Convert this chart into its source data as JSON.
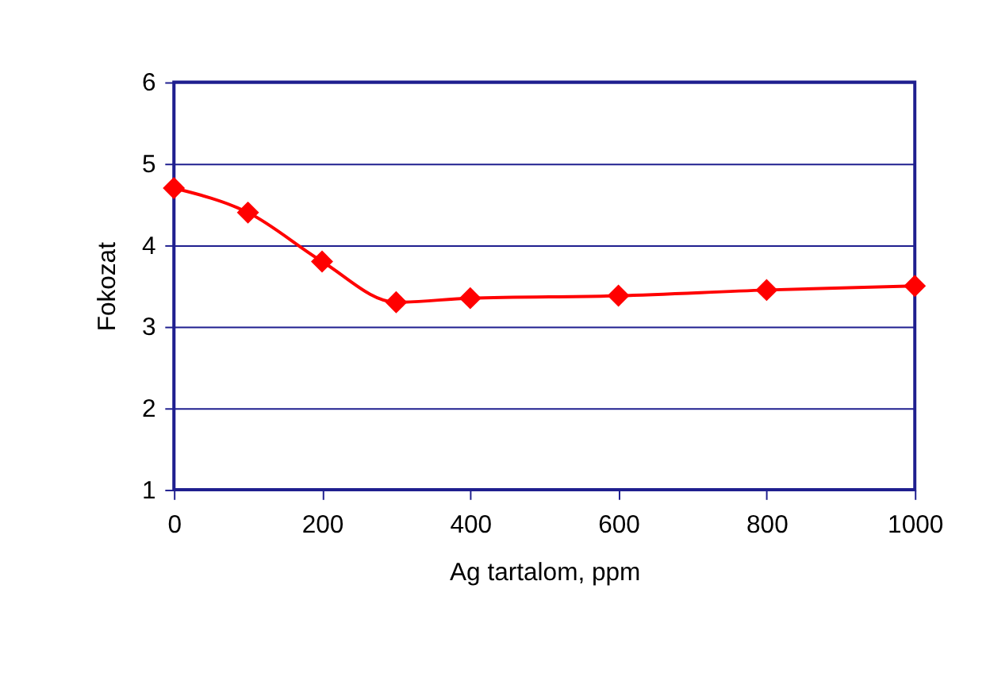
{
  "chart_data": {
    "type": "line",
    "xlabel": "Ag tartalom, ppm",
    "ylabel": "Fokozat",
    "x": [
      0,
      100,
      200,
      300,
      400,
      600,
      800,
      1000
    ],
    "series": [
      {
        "color": "#ff0000",
        "values": [
          4.7,
          4.4,
          3.8,
          3.3,
          3.35,
          3.38,
          3.45,
          3.5
        ]
      }
    ],
    "xlim": [
      0,
      1000
    ],
    "xticks": [
      0,
      200,
      400,
      600,
      800,
      1000
    ],
    "ylim": [
      1,
      6
    ],
    "yticks": [
      1,
      2,
      3,
      4,
      5,
      6
    ],
    "grid": "y",
    "marker": "diamond",
    "line_style": "solid"
  }
}
